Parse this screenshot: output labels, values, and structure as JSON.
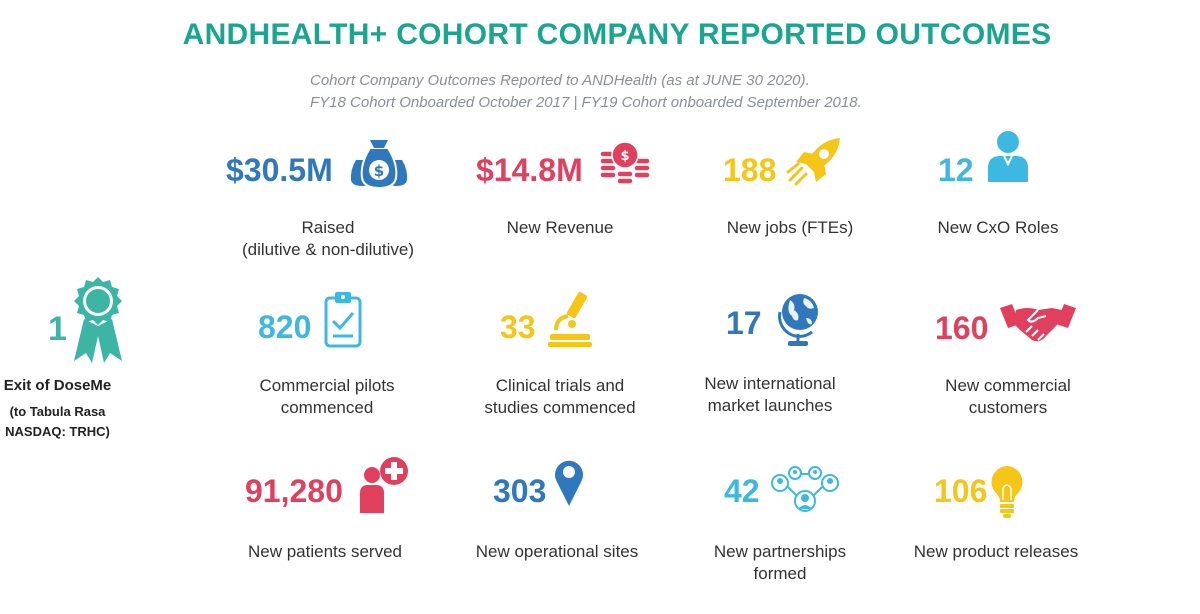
{
  "title": "ANDHEALTH+ COHORT COMPANY REPORTED OUTCOMES",
  "subtitle": {
    "line1": "Cohort Company Outcomes Reported to ANDHealth (as at JUNE 30 2020).",
    "line2": "FY18 Cohort Onboarded October 2017 | FY19 Cohort onboarded September 2018."
  },
  "colors": {
    "title": "#1aa58e",
    "blue": "#2f78bd",
    "red": "#e0405e",
    "yellow": "#f5c518",
    "cyan": "#3db8e0",
    "teal": "#3cb5a5"
  },
  "exit": {
    "value": "1",
    "title": "Exit of DoseMe",
    "sub1": "(to Tabula Rasa",
    "sub2": "NASDAQ: TRHC)",
    "icon": "award-ribbon-icon"
  },
  "stats": {
    "raised": {
      "value": "$30.5M",
      "label1": "Raised",
      "label2": "(dilutive & non-dilutive)",
      "icon": "money-bags-icon"
    },
    "revenue": {
      "value": "$14.8M",
      "label1": "New Revenue",
      "icon": "coin-stacks-icon"
    },
    "jobs": {
      "value": "188",
      "label1": "New jobs (FTEs)",
      "icon": "rocket-icon"
    },
    "cxo": {
      "value": "12",
      "label1": "New CxO Roles",
      "icon": "person-icon"
    },
    "pilots": {
      "value": "820",
      "label1": "Commercial pilots",
      "label2": "commenced",
      "icon": "clipboard-check-icon"
    },
    "trials": {
      "value": "33",
      "label1": "Clinical trials and",
      "label2": "studies commenced",
      "icon": "microscope-icon"
    },
    "markets": {
      "value": "17",
      "label1": "New international",
      "label2": "market launches",
      "icon": "globe-icon"
    },
    "customers": {
      "value": "160",
      "label1": "New commercial",
      "label2": "customers",
      "icon": "handshake-icon"
    },
    "patients": {
      "value": "91,280",
      "label1": "New patients served",
      "icon": "patient-cross-icon"
    },
    "sites": {
      "value": "303",
      "label1": "New operational sites",
      "icon": "map-pin-icon"
    },
    "partnerships": {
      "value": "42",
      "label1": "New partnerships",
      "label2": "formed",
      "icon": "network-people-icon"
    },
    "releases": {
      "value": "106",
      "label1": "New product releases",
      "icon": "lightbulb-icon"
    }
  }
}
